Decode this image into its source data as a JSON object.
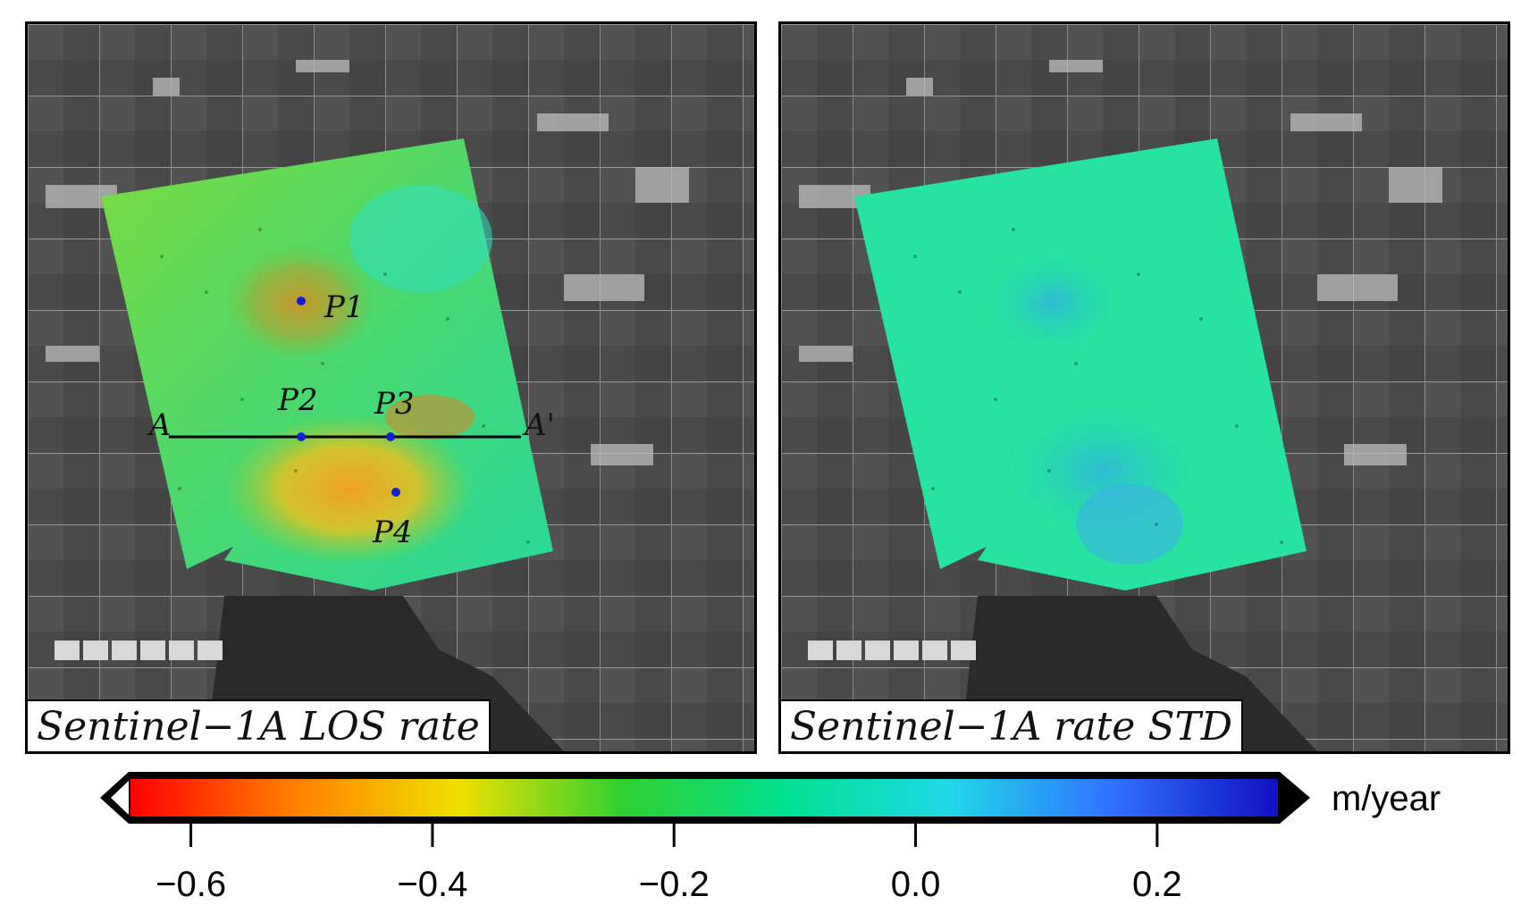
{
  "panels": [
    {
      "label": "Sentinel−1A LOS rate",
      "points": [
        "P1",
        "P2",
        "P3",
        "P4"
      ],
      "profile": {
        "start": "A",
        "end": "A'"
      }
    },
    {
      "label": "Sentinel−1A rate STD"
    }
  ],
  "colorbar": {
    "unit": "m/year",
    "range": [
      -0.65,
      0.3
    ],
    "ticks": [
      "−0.6",
      "−0.4",
      "−0.2",
      "0.0",
      "0.2"
    ],
    "tick_values": [
      -0.6,
      -0.4,
      -0.2,
      0.0,
      0.2
    ],
    "colors": [
      "#ffffff",
      "#ff0000",
      "#ff8000",
      "#f0e000",
      "#30d030",
      "#00e090",
      "#20d8e8",
      "#3070ff",
      "#1010c0"
    ]
  }
}
